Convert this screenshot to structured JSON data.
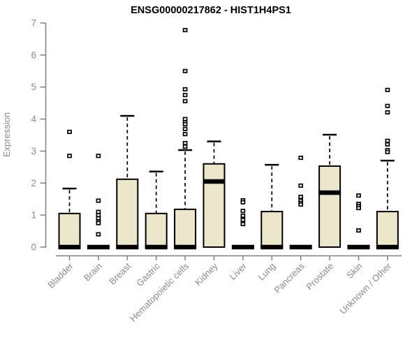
{
  "title": "ENSG00000217862 - HIST1H4PS1",
  "colors": {
    "box_fill": "#ECE6CA",
    "box_border": "#000000",
    "median": "#000000",
    "whisker": "#000000",
    "outlier_stroke": "#000000",
    "outlier_fill": "#ffffff",
    "axis": "#808080",
    "tick_text": "#8a8a8a",
    "title_text": "#000000"
  },
  "chart_data": {
    "type": "boxplot",
    "title": "ENSG00000217862 - HIST1H4PS1",
    "xlabel": "",
    "ylabel": "Expression",
    "ylim": [
      0,
      7
    ],
    "yticks": [
      0,
      1,
      2,
      3,
      4,
      5,
      6,
      7
    ],
    "grid": false,
    "legend": false,
    "categories": [
      "Bladder",
      "Brain",
      "Breast",
      "Gastric",
      "Hematopoietic cells",
      "Kidney",
      "Liver",
      "Lung",
      "Pancreas",
      "Prostate",
      "Skin",
      "Unknown / Other"
    ],
    "series": [
      {
        "name": "Bladder",
        "q1": 0,
        "median": 0,
        "q3": 1.05,
        "whisker_low": 0,
        "whisker_high": 1.83,
        "outliers": [
          3.6,
          2.85
        ]
      },
      {
        "name": "Brain",
        "q1": 0,
        "median": 0,
        "q3": 0,
        "whisker_low": 0,
        "whisker_high": 0,
        "outliers": [
          2.85,
          1.45,
          1.1,
          1.0,
          0.9,
          0.8,
          0.75,
          0.4
        ]
      },
      {
        "name": "Breast",
        "q1": 0,
        "median": 0,
        "q3": 2.12,
        "whisker_low": 0,
        "whisker_high": 4.1,
        "outliers": []
      },
      {
        "name": "Gastric",
        "q1": 0,
        "median": 0,
        "q3": 1.05,
        "whisker_low": 0,
        "whisker_high": 2.36,
        "outliers": []
      },
      {
        "name": "Hematopoietic cells",
        "q1": 0,
        "median": 0,
        "q3": 1.18,
        "whisker_low": 0,
        "whisker_high": 3.03,
        "outliers": [
          6.78,
          5.5,
          4.93,
          4.75,
          4.56,
          4.0,
          3.9,
          3.84,
          3.69,
          3.53,
          3.25,
          3.14
        ]
      },
      {
        "name": "Kidney",
        "q1": 0,
        "median": 2.05,
        "q3": 2.6,
        "whisker_low": 0,
        "whisker_high": 3.3,
        "outliers": []
      },
      {
        "name": "Liver",
        "q1": 0,
        "median": 0,
        "q3": 0,
        "whisker_low": 0,
        "whisker_high": 0,
        "outliers": [
          1.46,
          1.4,
          1.13,
          0.98,
          0.85,
          0.72
        ]
      },
      {
        "name": "Lung",
        "q1": 0,
        "median": 0,
        "q3": 1.11,
        "whisker_low": 0,
        "whisker_high": 2.57,
        "outliers": []
      },
      {
        "name": "Pancreas",
        "q1": 0,
        "median": 0,
        "q3": 0,
        "whisker_low": 0,
        "whisker_high": 0,
        "outliers": [
          2.79,
          1.92,
          1.57,
          1.45,
          1.38,
          1.33
        ]
      },
      {
        "name": "Prostate",
        "q1": 0,
        "median": 1.7,
        "q3": 2.53,
        "whisker_low": 0,
        "whisker_high": 3.51,
        "outliers": []
      },
      {
        "name": "Skin",
        "q1": 0,
        "median": 0,
        "q3": 0,
        "whisker_low": 0,
        "whisker_high": 0,
        "outliers": [
          1.61,
          1.35,
          1.28,
          1.22,
          0.52
        ]
      },
      {
        "name": "Unknown / Other",
        "q1": 0,
        "median": 0,
        "q3": 1.11,
        "whisker_low": 0,
        "whisker_high": 2.7,
        "outliers": [
          4.91,
          4.41,
          4.21,
          3.32,
          3.21,
          3.03,
          2.97
        ]
      }
    ]
  }
}
